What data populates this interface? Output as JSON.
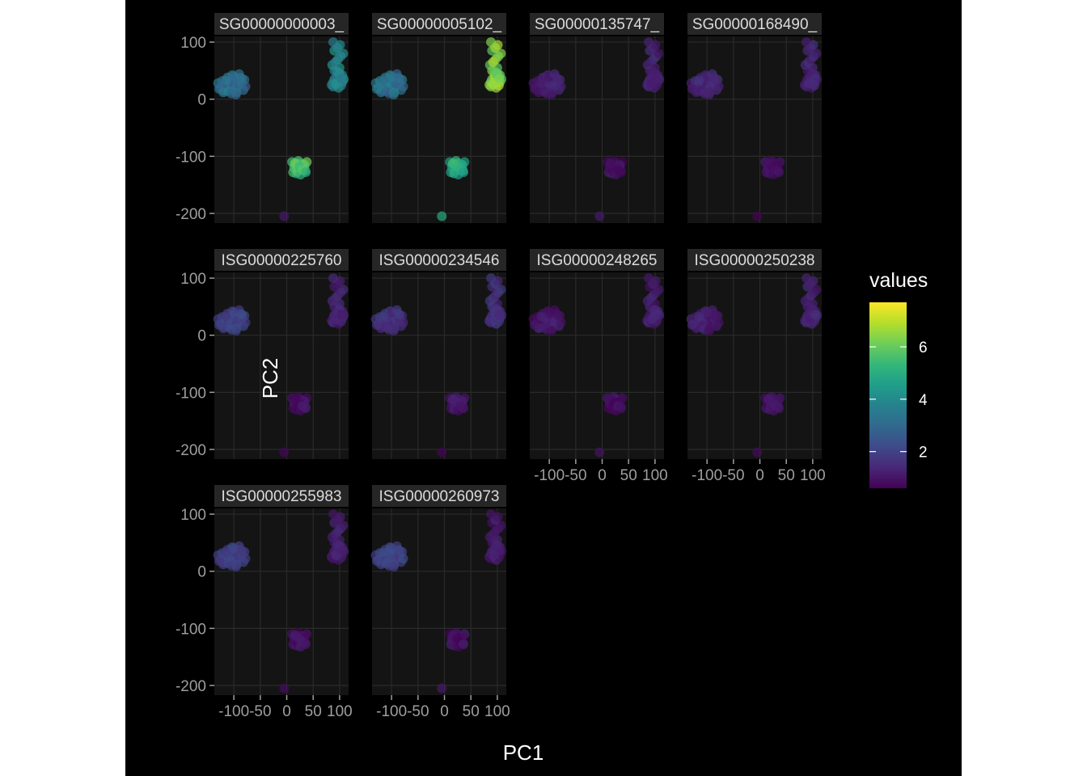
{
  "chart_data": {
    "type": "scatter",
    "xlabel": "PC1",
    "ylabel": "PC2",
    "x_ticks": [
      -100,
      -50,
      0,
      50,
      100
    ],
    "x_tick_labels": [
      "-100",
      "-50",
      "0",
      "50",
      "100"
    ],
    "y_ticks": [
      100,
      0,
      -100,
      -200
    ],
    "y_tick_labels": [
      "100",
      "0",
      "-100",
      "-200"
    ],
    "xlim": [
      -137,
      117
    ],
    "ylim": [
      -217,
      110
    ],
    "legend": {
      "title": "values",
      "position": "right",
      "tick_labels": [
        "2",
        "4",
        "6"
      ],
      "tick_values": [
        2,
        4,
        6
      ],
      "range": [
        0.6,
        7.7
      ],
      "colormap": "viridis"
    },
    "colors": {
      "background": "#000000",
      "panel": "#141414",
      "strip": "#262626",
      "grid": "#2a2a2a",
      "text": "#ffffff",
      "tick_text": "#9e9e9e"
    },
    "facets": [
      {
        "label": "SG00000000003_",
        "level": 3.6,
        "cluster_levels": [
          3.2,
          3.8,
          5.6,
          1.2
        ]
      },
      {
        "label": "SG00000005102_",
        "level": 5.6,
        "cluster_levels": [
          3.3,
          6.4,
          5.0,
          4.8
        ]
      },
      {
        "label": "SG00000135747_",
        "level": 1.1,
        "cluster_levels": [
          1.2,
          1.3,
          0.9,
          0.8
        ]
      },
      {
        "label": "SG00000168490_",
        "level": 1.2,
        "cluster_levels": [
          1.4,
          1.3,
          0.9,
          0.8
        ]
      },
      {
        "label": "ISG00000225760",
        "level": 1.3,
        "cluster_levels": [
          2.0,
          1.3,
          0.9,
          0.8
        ]
      },
      {
        "label": "ISG00000234546",
        "level": 1.3,
        "cluster_levels": [
          1.6,
          1.6,
          1.1,
          0.8
        ]
      },
      {
        "label": "ISG00000248265",
        "level": 1.0,
        "cluster_levels": [
          1.1,
          1.2,
          0.9,
          0.8
        ]
      },
      {
        "label": "ISG00000250238",
        "level": 1.0,
        "cluster_levels": [
          1.2,
          1.3,
          0.9,
          0.8
        ]
      },
      {
        "label": "ISG00000255983",
        "level": 1.4,
        "cluster_levels": [
          2.0,
          1.2,
          0.9,
          0.8
        ]
      },
      {
        "label": "ISG00000260973",
        "level": 1.3,
        "cluster_levels": [
          2.0,
          1.1,
          0.9,
          0.8
        ]
      }
    ],
    "clusters": [
      {
        "name": "cluster-left",
        "x": [
          -130,
          -125,
          -122,
          -118,
          -115,
          -112,
          -110,
          -108,
          -105,
          -103,
          -100,
          -98,
          -95,
          -92,
          -90,
          -88,
          -85,
          -82,
          -80,
          -78,
          -120,
          -110,
          -100,
          -90,
          -115,
          -105,
          -95,
          -85,
          -128,
          -96
        ],
        "y": [
          28,
          20,
          32,
          15,
          25,
          38,
          22,
          30,
          18,
          42,
          26,
          35,
          20,
          30,
          24,
          38,
          28,
          16,
          34,
          22,
          12,
          14,
          40,
          44,
          33,
          10,
          12,
          36,
          18,
          8
        ]
      },
      {
        "name": "cluster-right",
        "x": [
          85,
          88,
          90,
          92,
          95,
          98,
          100,
          102,
          105,
          108,
          90,
          95,
          100,
          105,
          88,
          93,
          98,
          103,
          86,
          92,
          97,
          102,
          107,
          90,
          96,
          101,
          88,
          94,
          99,
          104
        ],
        "y": [
          25,
          30,
          35,
          28,
          40,
          32,
          45,
          38,
          42,
          35,
          50,
          48,
          55,
          30,
          22,
          26,
          20,
          24,
          60,
          65,
          70,
          75,
          80,
          85,
          90,
          95,
          100,
          28,
          44,
          36
        ]
      },
      {
        "name": "cluster-bottom",
        "x": [
          10,
          15,
          20,
          25,
          30,
          35,
          12,
          18,
          22,
          28,
          32,
          38,
          14,
          20,
          26,
          34,
          16,
          24,
          30,
          36
        ],
        "y": [
          -110,
          -115,
          -120,
          -112,
          -118,
          -125,
          -128,
          -130,
          -108,
          -122,
          -114,
          -110,
          -120,
          -126,
          -132,
          -116,
          -112,
          -118,
          -124,
          -128
        ]
      },
      {
        "name": "outlier",
        "x": [
          -5
        ],
        "y": [
          -205
        ]
      }
    ]
  }
}
